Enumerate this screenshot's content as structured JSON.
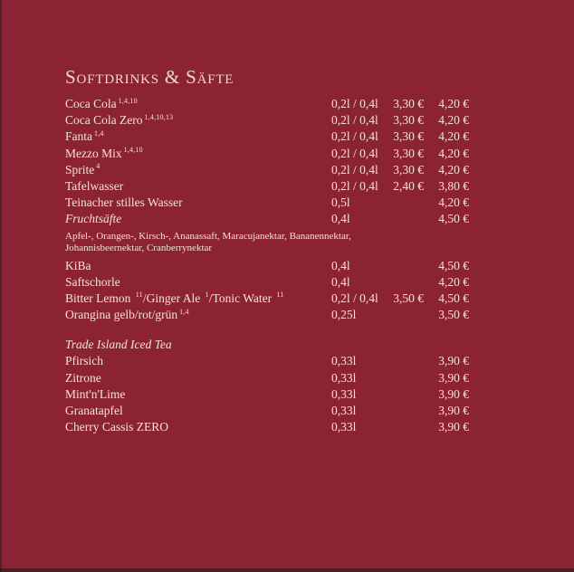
{
  "colors": {
    "background": "#8b2334",
    "text": "#f1e5d4",
    "title": "#ecdcc6"
  },
  "menu": {
    "title": "Softdrinks & Säfte",
    "rows": [
      {
        "type": "item",
        "parts": [
          {
            "t": "Coca Cola",
            "s": "1,4,10"
          }
        ],
        "size": "0,2l / 0,4l",
        "price1": "3,30 €",
        "price2": "4,20 €"
      },
      {
        "type": "item",
        "parts": [
          {
            "t": "Coca Cola Zero",
            "s": "1,4,10,13"
          }
        ],
        "size": "0,2l / 0,4l",
        "price1": "3,30 €",
        "price2": "4,20 €"
      },
      {
        "type": "item",
        "parts": [
          {
            "t": "Fanta",
            "s": "1,4"
          }
        ],
        "size": "0,2l / 0,4l",
        "price1": "3,30 €",
        "price2": "4,20 €"
      },
      {
        "type": "item",
        "parts": [
          {
            "t": "Mezzo Mix",
            "s": "1,4,10"
          }
        ],
        "size": "0,2l / 0,4l",
        "price1": "3,30 €",
        "price2": "4,20 €"
      },
      {
        "type": "item",
        "parts": [
          {
            "t": "Sprite",
            "s": "4"
          }
        ],
        "size": "0,2l / 0,4l",
        "price1": "3,30 €",
        "price2": "4,20 €"
      },
      {
        "type": "item",
        "parts": [
          {
            "t": "Tafelwasser",
            "s": ""
          }
        ],
        "size": "0,2l / 0,4l",
        "price1": "2,40 €",
        "price2": "3,80 €"
      },
      {
        "type": "item",
        "parts": [
          {
            "t": "Teinacher stilles Wasser",
            "s": ""
          }
        ],
        "size": "0,5l",
        "price1": "",
        "price2": "4,20 €"
      },
      {
        "type": "item",
        "italic": true,
        "parts": [
          {
            "t": "Fruchtsäfte",
            "s": ""
          }
        ],
        "size": "0,4l",
        "price1": "",
        "price2": "4,50 €"
      },
      {
        "type": "note",
        "text": "Apfel-, Orangen-, Kirsch-, Ananassaft, Maracujanektar, Bananennektar, Johannisbeernektar, Cranberrynektar"
      },
      {
        "type": "item",
        "parts": [
          {
            "t": "KiBa",
            "s": ""
          }
        ],
        "size": "0,4l",
        "price1": "",
        "price2": "4,50 €"
      },
      {
        "type": "item",
        "parts": [
          {
            "t": "Saftschorle",
            "s": ""
          }
        ],
        "size": "0,4l",
        "price1": "",
        "price2": "4,20 €"
      },
      {
        "type": "item",
        "parts": [
          {
            "t": "Bitter Lemon ",
            "s": "11"
          },
          {
            "t": "/Ginger Ale ",
            "s": "1"
          },
          {
            "t": "/Tonic Water ",
            "s": "11"
          }
        ],
        "size": "0,2l / 0,4l",
        "price1": "3,50 €",
        "price2": "4,50 €"
      },
      {
        "type": "item",
        "parts": [
          {
            "t": "Orangina gelb/rot/grün",
            "s": "1,4"
          }
        ],
        "size": "0,25l",
        "price1": "",
        "price2": "3,50 €"
      },
      {
        "type": "spacer"
      },
      {
        "type": "item",
        "italic": true,
        "parts": [
          {
            "t": "Trade Island Iced Tea",
            "s": ""
          }
        ],
        "size": "",
        "price1": "",
        "price2": ""
      },
      {
        "type": "item",
        "parts": [
          {
            "t": "Pfirsich",
            "s": ""
          }
        ],
        "size": "0,33l",
        "price1": "",
        "price2": "3,90 €"
      },
      {
        "type": "item",
        "parts": [
          {
            "t": "Zitrone",
            "s": ""
          }
        ],
        "size": "0,33l",
        "price1": "",
        "price2": "3,90 €"
      },
      {
        "type": "item",
        "parts": [
          {
            "t": "Mint'n'Lime",
            "s": ""
          }
        ],
        "size": "0,33l",
        "price1": "",
        "price2": "3,90 €"
      },
      {
        "type": "item",
        "parts": [
          {
            "t": "Granatapfel",
            "s": ""
          }
        ],
        "size": "0,33l",
        "price1": "",
        "price2": "3,90 €"
      },
      {
        "type": "item",
        "parts": [
          {
            "t": "Cherry Cassis ZERO",
            "s": ""
          }
        ],
        "size": "0,33l",
        "price1": "",
        "price2": "3,90 €"
      }
    ]
  }
}
